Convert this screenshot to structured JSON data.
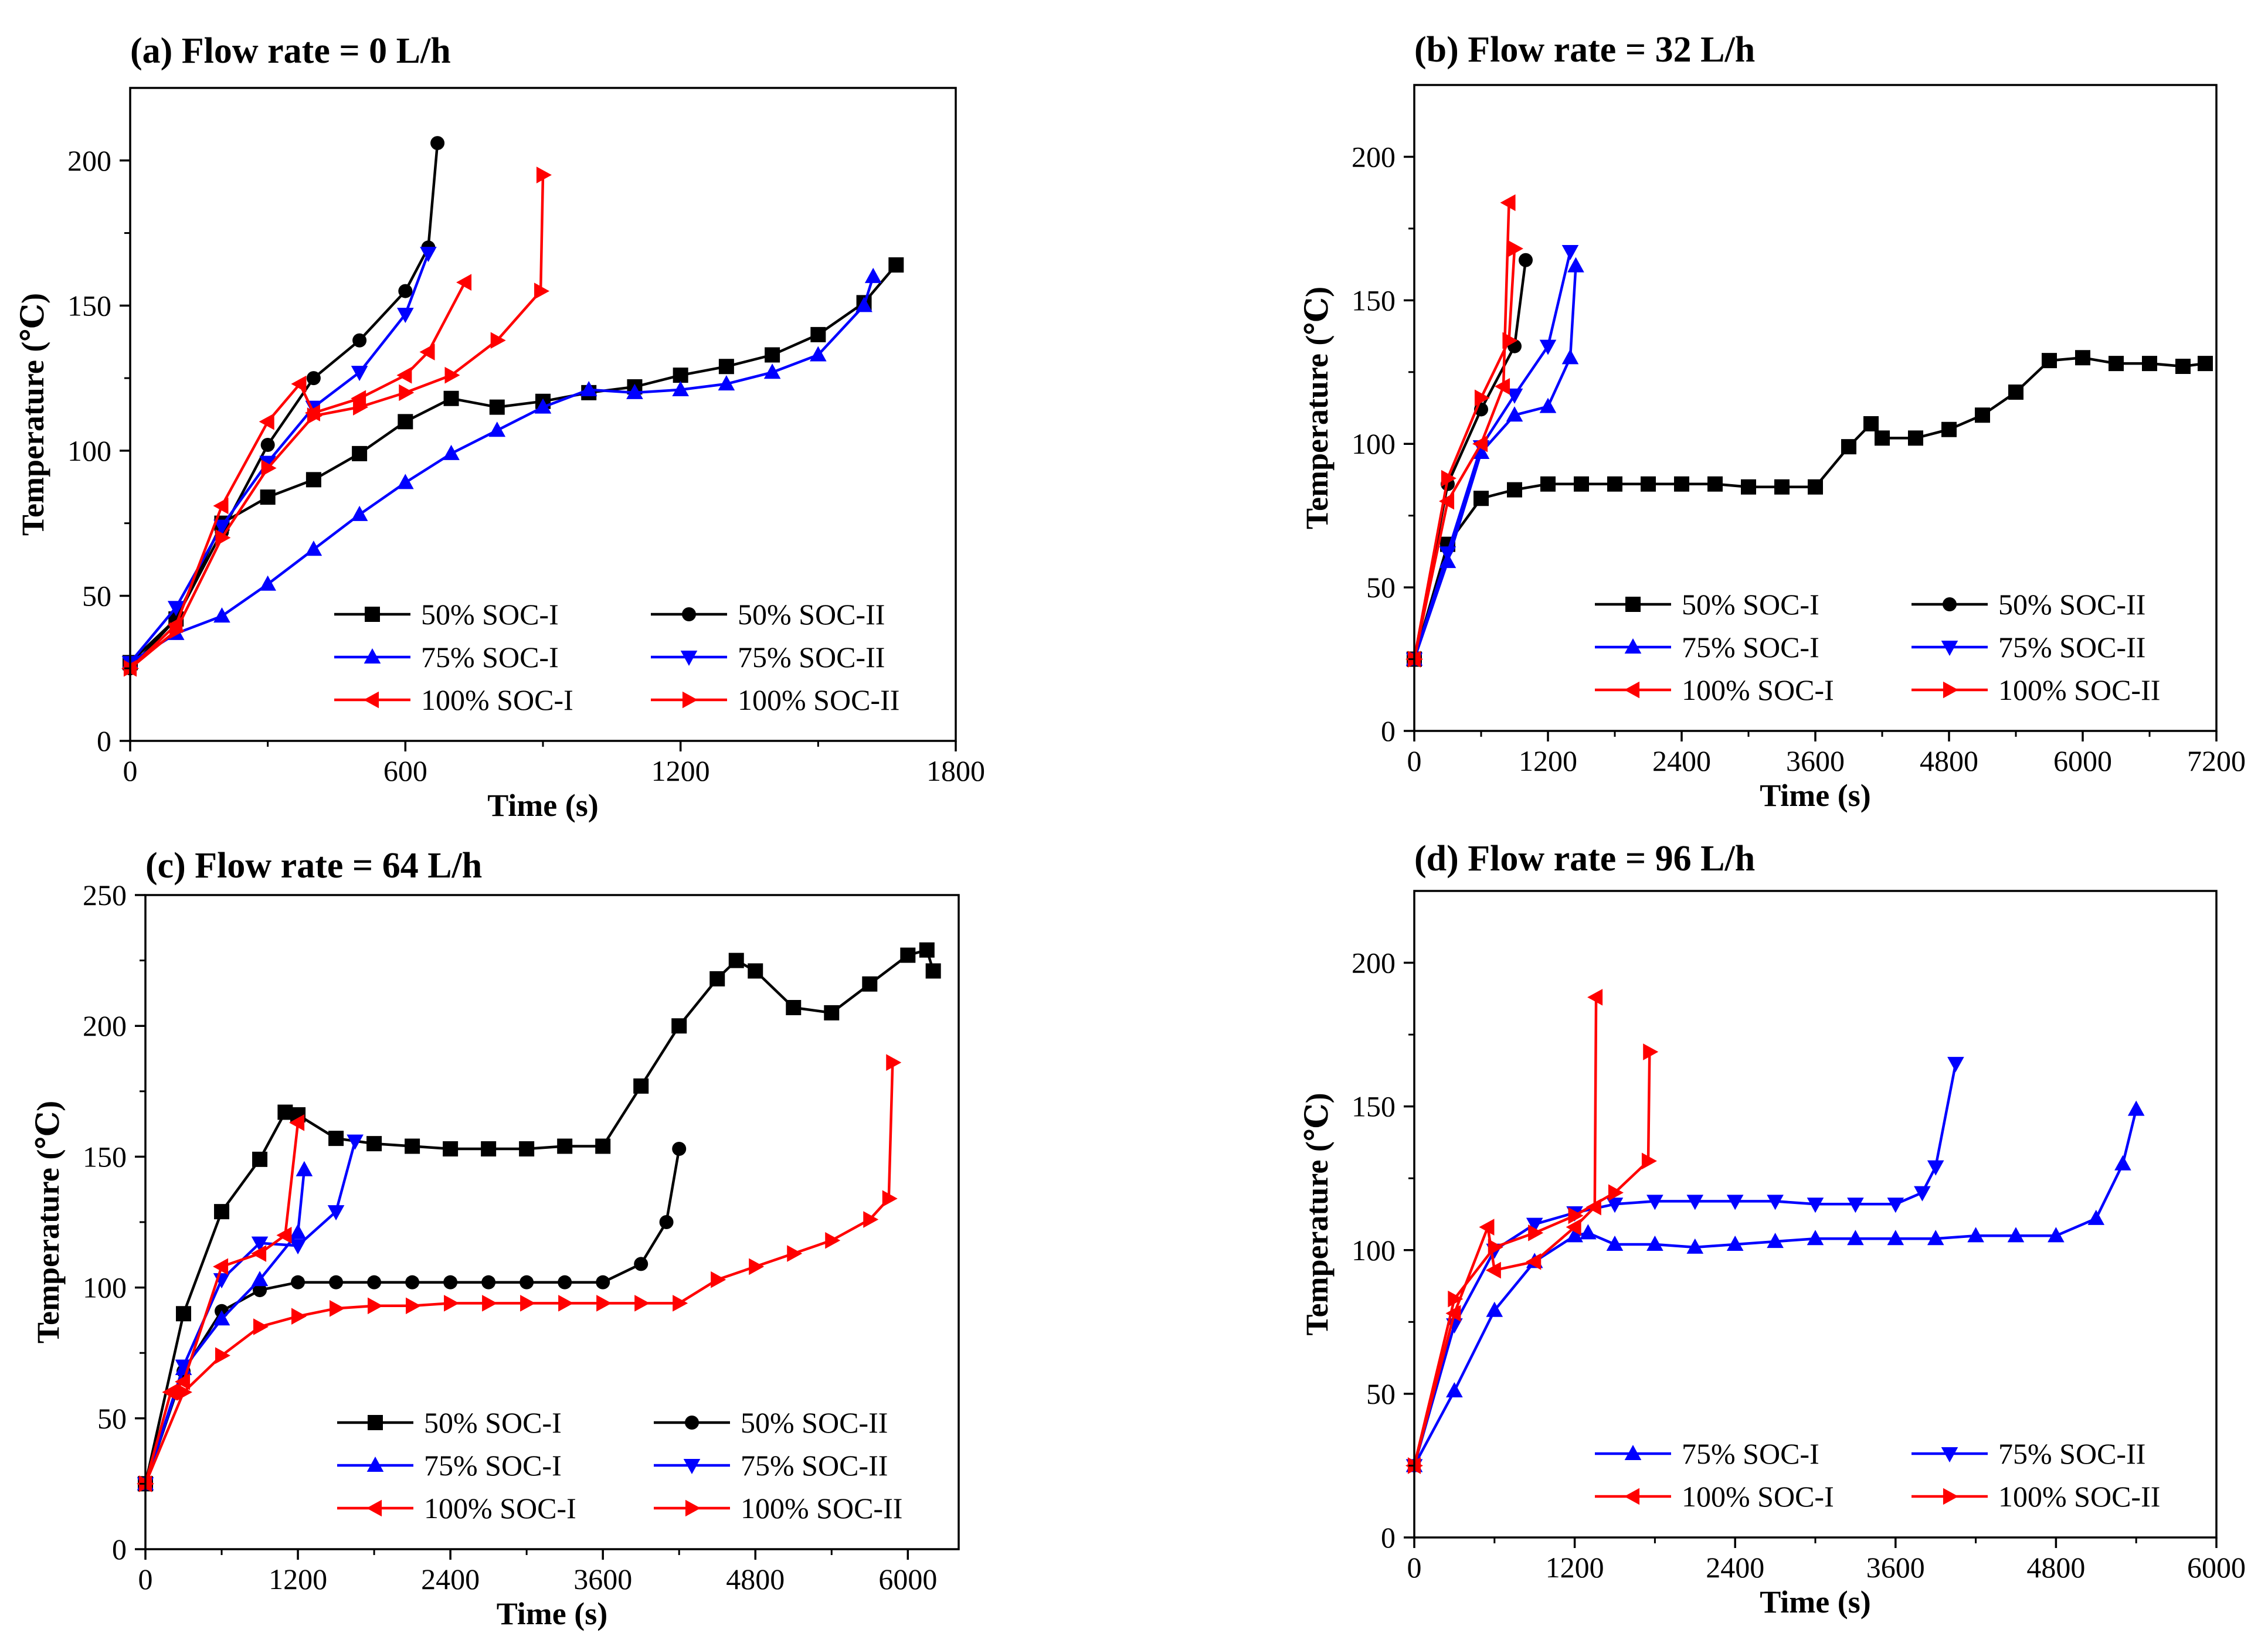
{
  "chart_data": [
    {
      "type": "line",
      "panel_label": "(a) Flow rate = 0 L/h",
      "xlabel": "Time (s)",
      "ylabel": "Temperature (℃)",
      "xlim": [
        0,
        1800
      ],
      "ylim": [
        0,
        225
      ],
      "xticks": [
        0,
        600,
        1200,
        1800
      ],
      "yticks": [
        0,
        50,
        100,
        150,
        200
      ],
      "legend_position": "bottom-right",
      "series": [
        {
          "name": "50% SOC-I",
          "color": "#000000",
          "marker": "square",
          "x": [
            0,
            100,
            200,
            300,
            400,
            500,
            600,
            700,
            800,
            900,
            1000,
            1100,
            1200,
            1300,
            1400,
            1500,
            1600,
            1670
          ],
          "y": [
            27,
            42,
            75,
            84,
            90,
            99,
            110,
            118,
            115,
            117,
            120,
            122,
            126,
            129,
            133,
            140,
            151,
            164
          ]
        },
        {
          "name": "50% SOC-II",
          "color": "#000000",
          "marker": "circle",
          "x": [
            0,
            100,
            200,
            300,
            400,
            500,
            600,
            650,
            670
          ],
          "y": [
            25,
            42,
            72,
            102,
            125,
            138,
            155,
            170,
            206
          ]
        },
        {
          "name": "75% SOC-I",
          "color": "#0000ff",
          "marker": "triangle-up",
          "x": [
            0,
            100,
            200,
            300,
            400,
            500,
            600,
            700,
            800,
            900,
            1000,
            1100,
            1200,
            1300,
            1400,
            1500,
            1600,
            1620
          ],
          "y": [
            27,
            37,
            43,
            54,
            66,
            78,
            89,
            99,
            107,
            115,
            121,
            120,
            121,
            123,
            127,
            133,
            150,
            160
          ]
        },
        {
          "name": "75% SOC-II",
          "color": "#0000ff",
          "marker": "triangle-down",
          "x": [
            0,
            100,
            200,
            300,
            400,
            500,
            600,
            650
          ],
          "y": [
            27,
            46,
            74,
            96,
            115,
            127,
            147,
            168
          ]
        },
        {
          "name": "100% SOC-I",
          "color": "#ff0000",
          "marker": "triangle-left",
          "x": [
            0,
            100,
            200,
            300,
            370,
            400,
            500,
            600,
            650,
            730
          ],
          "y": [
            25,
            40,
            81,
            110,
            123,
            113,
            118,
            126,
            134,
            158
          ]
        },
        {
          "name": "100% SOC-II",
          "color": "#ff0000",
          "marker": "triangle-right",
          "x": [
            0,
            100,
            200,
            300,
            400,
            500,
            600,
            700,
            800,
            895,
            900
          ],
          "y": [
            25,
            38,
            70,
            94,
            112,
            115,
            120,
            126,
            138,
            155,
            195
          ]
        }
      ]
    },
    {
      "type": "line",
      "panel_label": "(b) Flow rate = 32 L/h",
      "xlabel": "Time (s)",
      "ylabel": "Temperature (℃)",
      "xlim": [
        0,
        7200
      ],
      "ylim": [
        0,
        225
      ],
      "xticks": [
        0,
        1200,
        2400,
        3600,
        4800,
        6000,
        7200
      ],
      "yticks": [
        0,
        50,
        100,
        150,
        200
      ],
      "legend_position": "bottom-right",
      "series": [
        {
          "name": "50% SOC-I",
          "color": "#000000",
          "marker": "square",
          "x": [
            0,
            300,
            600,
            900,
            1200,
            1500,
            1800,
            2100,
            2400,
            2700,
            3000,
            3300,
            3600,
            3900,
            4100,
            4200,
            4500,
            4800,
            5100,
            5400,
            5700,
            6000,
            6300,
            6600,
            6900,
            7100
          ],
          "y": [
            25,
            65,
            81,
            84,
            86,
            86,
            86,
            86,
            86,
            86,
            85,
            85,
            85,
            99,
            107,
            102,
            102,
            105,
            110,
            118,
            129,
            130,
            128,
            128,
            127,
            128
          ]
        },
        {
          "name": "50% SOC-II",
          "color": "#000000",
          "marker": "circle",
          "x": [
            0,
            300,
            600,
            900,
            1000
          ],
          "y": [
            25,
            86,
            112,
            134,
            164
          ]
        },
        {
          "name": "75% SOC-I",
          "color": "#0000ff",
          "marker": "triangle-up",
          "x": [
            0,
            300,
            600,
            900,
            1200,
            1400,
            1450
          ],
          "y": [
            25,
            59,
            97,
            110,
            113,
            130,
            162
          ]
        },
        {
          "name": "75% SOC-II",
          "color": "#0000ff",
          "marker": "triangle-down",
          "x": [
            0,
            300,
            600,
            900,
            1200,
            1400
          ],
          "y": [
            25,
            62,
            99,
            117,
            134,
            167
          ]
        },
        {
          "name": "100% SOC-I",
          "color": "#ff0000",
          "marker": "triangle-left",
          "x": [
            0,
            300,
            600,
            800,
            850
          ],
          "y": [
            25,
            80,
            100,
            120,
            184
          ]
        },
        {
          "name": "100% SOC-II",
          "color": "#ff0000",
          "marker": "triangle-right",
          "x": [
            0,
            300,
            600,
            850,
            900
          ],
          "y": [
            25,
            88,
            116,
            136,
            168
          ]
        }
      ]
    },
    {
      "type": "line",
      "panel_label": "(c) Flow rate = 64 L/h",
      "xlabel": "Time (s)",
      "ylabel": "Temperature (℃)",
      "xlim": [
        0,
        6400
      ],
      "ylim": [
        0,
        250
      ],
      "xticks": [
        0,
        1200,
        2400,
        3600,
        4800,
        6000
      ],
      "yticks": [
        0,
        50,
        100,
        150,
        200,
        250
      ],
      "legend_position": "bottom-right",
      "series": [
        {
          "name": "50% SOC-I",
          "color": "#000000",
          "marker": "square",
          "x": [
            0,
            300,
            600,
            900,
            1100,
            1200,
            1500,
            1800,
            2100,
            2400,
            2700,
            3000,
            3300,
            3600,
            3900,
            4200,
            4500,
            4650,
            4800,
            5100,
            5400,
            5700,
            6000,
            6150,
            6200
          ],
          "y": [
            25,
            90,
            129,
            149,
            167,
            166,
            157,
            155,
            154,
            153,
            153,
            153,
            154,
            154,
            177,
            200,
            218,
            225,
            221,
            207,
            205,
            216,
            227,
            229,
            221
          ]
        },
        {
          "name": "50% SOC-II",
          "color": "#000000",
          "marker": "circle",
          "x": [
            0,
            300,
            600,
            900,
            1200,
            1500,
            1800,
            2100,
            2400,
            2700,
            3000,
            3300,
            3600,
            3900,
            4100,
            4200
          ],
          "y": [
            25,
            68,
            91,
            99,
            102,
            102,
            102,
            102,
            102,
            102,
            102,
            102,
            102,
            109,
            125,
            153
          ]
        },
        {
          "name": "75% SOC-I",
          "color": "#0000ff",
          "marker": "triangle-up",
          "x": [
            0,
            300,
            600,
            900,
            1200,
            1250
          ],
          "y": [
            25,
            69,
            88,
            103,
            121,
            145
          ]
        },
        {
          "name": "75% SOC-II",
          "color": "#0000ff",
          "marker": "triangle-down",
          "x": [
            0,
            300,
            600,
            900,
            1200,
            1500,
            1650
          ],
          "y": [
            25,
            70,
            103,
            117,
            116,
            129,
            156
          ]
        },
        {
          "name": "100% SOC-I",
          "color": "#ff0000",
          "marker": "triangle-left",
          "x": [
            0,
            200,
            300,
            600,
            900,
            1100,
            1200
          ],
          "y": [
            25,
            60,
            64,
            108,
            113,
            120,
            163
          ]
        },
        {
          "name": "100% SOC-II",
          "color": "#ff0000",
          "marker": "triangle-right",
          "x": [
            0,
            300,
            600,
            900,
            1200,
            1500,
            1800,
            2100,
            2400,
            2700,
            3000,
            3300,
            3600,
            3900,
            4200,
            4500,
            4800,
            5100,
            5400,
            5700,
            5850,
            5880
          ],
          "y": [
            25,
            60,
            74,
            85,
            89,
            92,
            93,
            93,
            94,
            94,
            94,
            94,
            94,
            94,
            94,
            103,
            108,
            113,
            118,
            126,
            134,
            186
          ]
        }
      ]
    },
    {
      "type": "line",
      "panel_label": "(d) Flow rate = 96 L/h",
      "xlabel": "Time (s)",
      "ylabel": "Temperature (℃)",
      "xlim": [
        0,
        6000
      ],
      "ylim": [
        0,
        225
      ],
      "xticks": [
        0,
        1200,
        2400,
        3600,
        4800,
        6000
      ],
      "yticks": [
        0,
        50,
        100,
        150,
        200
      ],
      "legend_position": "bottom-right",
      "series": [
        {
          "name": "75% SOC-I",
          "color": "#0000ff",
          "marker": "triangle-up",
          "x": [
            0,
            300,
            600,
            900,
            1200,
            1300,
            1500,
            1800,
            2100,
            2400,
            2700,
            3000,
            3300,
            3600,
            3900,
            4200,
            4500,
            4800,
            5100,
            5300,
            5400
          ],
          "y": [
            25,
            51,
            79,
            96,
            105,
            106,
            102,
            102,
            101,
            102,
            103,
            104,
            104,
            104,
            104,
            105,
            105,
            105,
            111,
            130,
            149
          ]
        },
        {
          "name": "75% SOC-II",
          "color": "#0000ff",
          "marker": "triangle-down",
          "x": [
            0,
            300,
            600,
            900,
            1200,
            1500,
            1800,
            2100,
            2400,
            2700,
            3000,
            3300,
            3600,
            3800,
            3900,
            4050
          ],
          "y": [
            25,
            74,
            100,
            109,
            113,
            116,
            117,
            117,
            117,
            117,
            116,
            116,
            116,
            120,
            129,
            165
          ]
        },
        {
          "name": "100% SOC-I",
          "color": "#ff0000",
          "marker": "triangle-left",
          "x": [
            0,
            300,
            550,
            600,
            900,
            1200,
            1350,
            1360
          ],
          "y": [
            25,
            78,
            108,
            93,
            96,
            108,
            115,
            188
          ]
        },
        {
          "name": "100% SOC-II",
          "color": "#ff0000",
          "marker": "triangle-right",
          "x": [
            0,
            300,
            600,
            900,
            1200,
            1500,
            1750,
            1760
          ],
          "y": [
            25,
            83,
            101,
            106,
            112,
            120,
            131,
            169
          ]
        }
      ]
    }
  ]
}
